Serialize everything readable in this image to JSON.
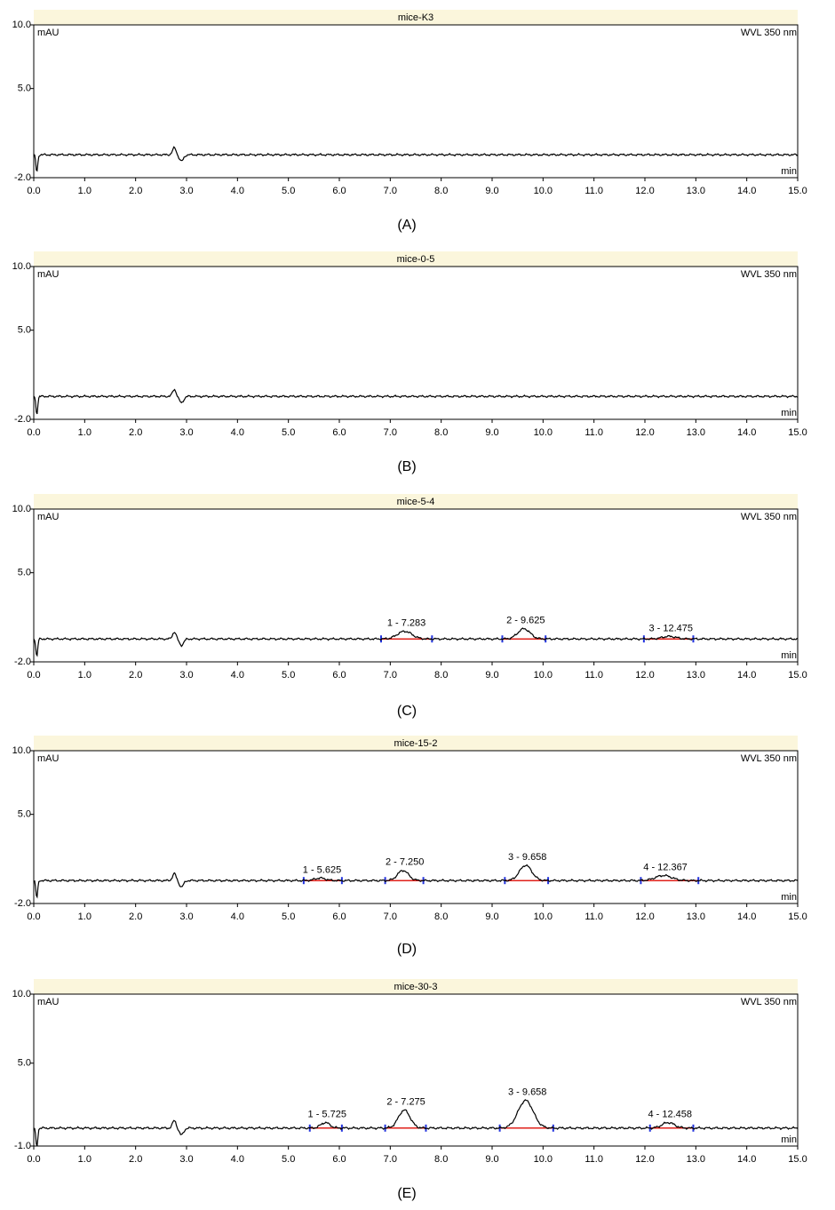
{
  "chart_data": [
    {
      "type": "line",
      "panel_label": "(A)",
      "title": "mice-K3",
      "y_unit": "mAU",
      "detector": "WVL 350 nm",
      "x_unit": "min",
      "xlim": [
        0.0,
        15.0
      ],
      "ylim": [
        -2.0,
        10.0
      ],
      "y_ticks": [
        "10.0",
        "5.0",
        "-2.0"
      ],
      "x_ticks": [
        "0.0",
        "1.0",
        "2.0",
        "3.0",
        "4.0",
        "5.0",
        "6.0",
        "7.0",
        "8.0",
        "9.0",
        "10.0",
        "11.0",
        "12.0",
        "13.0",
        "14.0",
        "15.0"
      ],
      "baseline": -0.2,
      "peaks": []
    },
    {
      "type": "line",
      "panel_label": "(B)",
      "title": "mice-0-5",
      "y_unit": "mAU",
      "detector": "WVL 350 nm",
      "x_unit": "min",
      "xlim": [
        0.0,
        15.0
      ],
      "ylim": [
        -2.0,
        10.0
      ],
      "y_ticks": [
        "10.0",
        "5.0",
        "-2.0"
      ],
      "x_ticks": [
        "0.0",
        "1.0",
        "2.0",
        "3.0",
        "4.0",
        "5.0",
        "6.0",
        "7.0",
        "8.0",
        "9.0",
        "10.0",
        "11.0",
        "12.0",
        "13.0",
        "14.0",
        "15.0"
      ],
      "baseline": -0.2,
      "peaks": []
    },
    {
      "type": "line",
      "panel_label": "(C)",
      "title": "mice-5-4",
      "y_unit": "mAU",
      "detector": "WVL 350 nm",
      "x_unit": "min",
      "xlim": [
        0.0,
        15.0
      ],
      "ylim": [
        -2.0,
        10.0
      ],
      "y_ticks": [
        "10.0",
        "5.0",
        "-2.0"
      ],
      "x_ticks": [
        "0.0",
        "1.0",
        "2.0",
        "3.0",
        "4.0",
        "5.0",
        "6.0",
        "7.0",
        "8.0",
        "9.0",
        "10.0",
        "11.0",
        "12.0",
        "13.0",
        "14.0",
        "15.0"
      ],
      "baseline": -0.2,
      "peaks": [
        {
          "label": "1 - 7.283",
          "rt": 7.283,
          "height": 0.6,
          "start": 6.82,
          "end": 7.82
        },
        {
          "label": "2 - 9.625",
          "rt": 9.625,
          "height": 0.8,
          "start": 9.2,
          "end": 10.05
        },
        {
          "label": "3 - 12.475",
          "rt": 12.475,
          "height": 0.2,
          "start": 11.98,
          "end": 12.95
        }
      ]
    },
    {
      "type": "line",
      "panel_label": "(D)",
      "title": "mice-15-2",
      "y_unit": "mAU",
      "detector": "WVL 350 nm",
      "x_unit": "min",
      "xlim": [
        0.0,
        15.0
      ],
      "ylim": [
        -2.0,
        10.0
      ],
      "y_ticks": [
        "10.0",
        "5.0",
        "-2.0"
      ],
      "x_ticks": [
        "0.0",
        "1.0",
        "2.0",
        "3.0",
        "4.0",
        "5.0",
        "6.0",
        "7.0",
        "8.0",
        "9.0",
        "10.0",
        "11.0",
        "12.0",
        "13.0",
        "14.0",
        "15.0"
      ],
      "baseline": -0.2,
      "peaks": [
        {
          "label": "1 - 5.625",
          "rt": 5.625,
          "height": 0.2,
          "start": 5.3,
          "end": 6.05
        },
        {
          "label": "2 - 7.250",
          "rt": 7.25,
          "height": 0.8,
          "start": 6.9,
          "end": 7.65
        },
        {
          "label": "3 - 9.658",
          "rt": 9.658,
          "height": 1.2,
          "start": 9.25,
          "end": 10.1
        },
        {
          "label": "4 - 12.367",
          "rt": 12.367,
          "height": 0.4,
          "start": 11.92,
          "end": 13.05
        }
      ]
    },
    {
      "type": "line",
      "panel_label": "(E)",
      "title": "mice-30-3",
      "y_unit": "mAU",
      "detector": "WVL 350 nm",
      "x_unit": "min",
      "xlim": [
        0.0,
        15.0
      ],
      "ylim": [
        -1.0,
        10.0
      ],
      "y_ticks": [
        "10.0",
        "5.0",
        "-1.0"
      ],
      "x_ticks": [
        "0.0",
        "1.0",
        "2.0",
        "3.0",
        "4.0",
        "5.0",
        "6.0",
        "7.0",
        "8.0",
        "9.0",
        "10.0",
        "11.0",
        "12.0",
        "13.0",
        "14.0",
        "15.0"
      ],
      "baseline": 0.3,
      "peaks": [
        {
          "label": "1 - 5.725",
          "rt": 5.725,
          "height": 0.4,
          "start": 5.42,
          "end": 6.05
        },
        {
          "label": "2 - 7.275",
          "rt": 7.275,
          "height": 1.3,
          "start": 6.9,
          "end": 7.7
        },
        {
          "label": "3 - 9.658",
          "rt": 9.658,
          "height": 2.0,
          "start": 9.15,
          "end": 10.2
        },
        {
          "label": "4 - 12.458",
          "rt": 12.458,
          "height": 0.4,
          "start": 12.1,
          "end": 12.95
        }
      ]
    }
  ]
}
